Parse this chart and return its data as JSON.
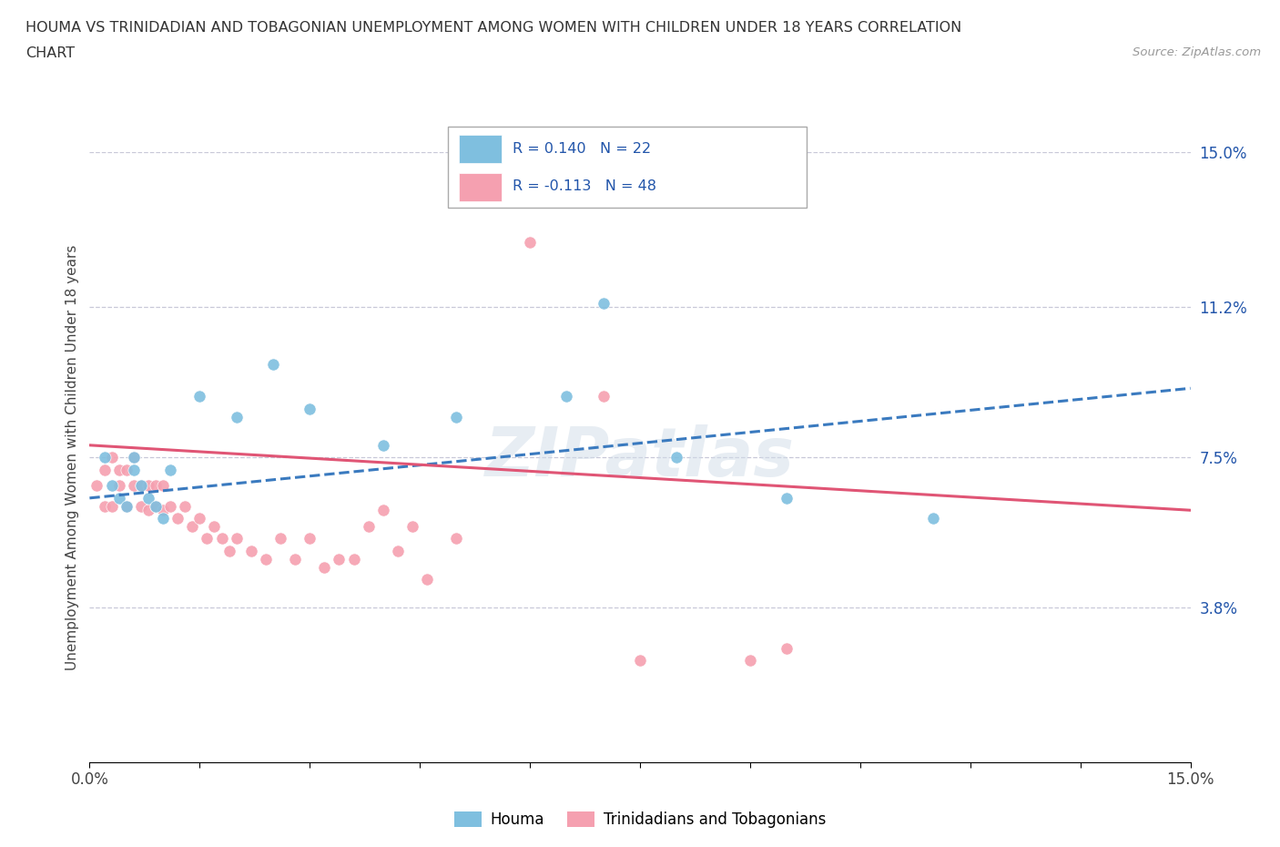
{
  "title_line1": "HOUMA VS TRINIDADIAN AND TOBAGONIAN UNEMPLOYMENT AMONG WOMEN WITH CHILDREN UNDER 18 YEARS CORRELATION",
  "title_line2": "CHART",
  "source": "Source: ZipAtlas.com",
  "ylabel": "Unemployment Among Women with Children Under 18 years",
  "xlim": [
    0.0,
    0.15
  ],
  "ylim": [
    0.0,
    0.15
  ],
  "ytick_values": [
    0.0,
    0.038,
    0.075,
    0.112,
    0.15
  ],
  "ytick_labels": [
    "",
    "3.8%",
    "7.5%",
    "11.2%",
    "15.0%"
  ],
  "houma_R": 0.14,
  "houma_N": 22,
  "trini_R": -0.113,
  "trini_N": 48,
  "houma_color": "#7fbfdf",
  "trini_color": "#f5a0b0",
  "houma_line_color": "#3a7abf",
  "trini_line_color": "#e05575",
  "background_color": "#ffffff",
  "grid_color": "#c8c8d8",
  "watermark": "ZIPatlas",
  "legend_text_color": "#2255aa",
  "houma_x": [
    0.002,
    0.003,
    0.004,
    0.005,
    0.006,
    0.006,
    0.007,
    0.008,
    0.009,
    0.01,
    0.011,
    0.015,
    0.02,
    0.025,
    0.03,
    0.04,
    0.05,
    0.065,
    0.08,
    0.095,
    0.115,
    0.07
  ],
  "houma_y": [
    0.075,
    0.068,
    0.065,
    0.063,
    0.072,
    0.075,
    0.068,
    0.065,
    0.063,
    0.06,
    0.072,
    0.09,
    0.085,
    0.098,
    0.087,
    0.078,
    0.085,
    0.09,
    0.075,
    0.065,
    0.06,
    0.113
  ],
  "trini_x": [
    0.001,
    0.002,
    0.002,
    0.003,
    0.003,
    0.004,
    0.004,
    0.005,
    0.005,
    0.006,
    0.006,
    0.007,
    0.007,
    0.008,
    0.008,
    0.009,
    0.009,
    0.01,
    0.01,
    0.011,
    0.012,
    0.013,
    0.014,
    0.015,
    0.016,
    0.017,
    0.018,
    0.019,
    0.02,
    0.022,
    0.024,
    0.026,
    0.028,
    0.03,
    0.032,
    0.034,
    0.036,
    0.038,
    0.04,
    0.042,
    0.044,
    0.046,
    0.05,
    0.06,
    0.07,
    0.075,
    0.09,
    0.095
  ],
  "trini_y": [
    0.068,
    0.063,
    0.072,
    0.063,
    0.075,
    0.068,
    0.072,
    0.063,
    0.072,
    0.068,
    0.075,
    0.063,
    0.068,
    0.062,
    0.068,
    0.063,
    0.068,
    0.062,
    0.068,
    0.063,
    0.06,
    0.063,
    0.058,
    0.06,
    0.055,
    0.058,
    0.055,
    0.052,
    0.055,
    0.052,
    0.05,
    0.055,
    0.05,
    0.055,
    0.048,
    0.05,
    0.05,
    0.058,
    0.062,
    0.052,
    0.058,
    0.045,
    0.055,
    0.128,
    0.09,
    0.025,
    0.025,
    0.028
  ]
}
